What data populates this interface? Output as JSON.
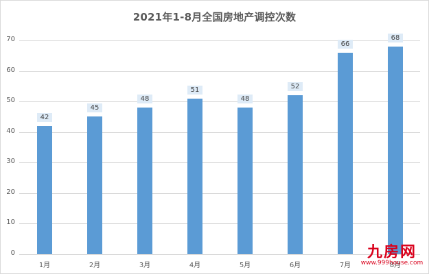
{
  "chart_data": {
    "type": "bar",
    "title": "2021年1-8月全国房地产调控次数",
    "xlabel": "",
    "ylabel": "",
    "categories": [
      "1月",
      "2月",
      "3月",
      "4月",
      "5月",
      "6月",
      "7月",
      "8月"
    ],
    "values": [
      42,
      45,
      48,
      51,
      48,
      52,
      66,
      68
    ],
    "ylim": [
      0,
      70
    ],
    "yticks": [
      0,
      10,
      20,
      30,
      40,
      50,
      60,
      70
    ],
    "grid": true,
    "legend": null,
    "bar_color": "#5b9bd5",
    "data_labels": true
  },
  "watermark": {
    "logo": "九房网",
    "url": "www.999house.com",
    "color": "#d9001b"
  }
}
